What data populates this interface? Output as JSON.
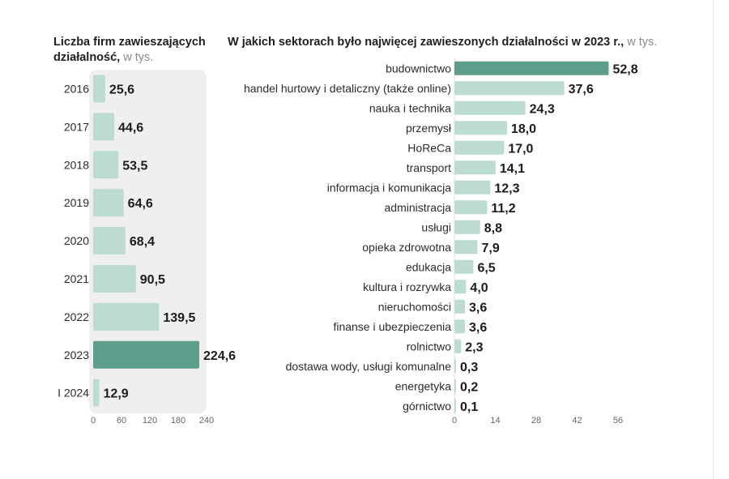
{
  "colors": {
    "bar": "#bcdcd3",
    "highlight": "#5c9e8b",
    "panel": "#efefef"
  },
  "chart_data": [
    {
      "type": "bar",
      "orientation": "horizontal",
      "title": "Liczba firm zawieszających działalność,",
      "title_line1": "Liczba firm zawieszających",
      "title_line2": "działalność,",
      "unit": "w tys.",
      "categories": [
        "2016",
        "2017",
        "2018",
        "2019",
        "2020",
        "2021",
        "2022",
        "2023",
        "I 2024"
      ],
      "values": [
        25.6,
        44.6,
        53.5,
        64.6,
        68.4,
        90.5,
        139.5,
        224.6,
        12.9
      ],
      "value_labels": [
        "25,6",
        "44,6",
        "53,5",
        "64,6",
        "68,4",
        "90,5",
        "139,5",
        "224,6",
        "12,9"
      ],
      "highlight": "2023",
      "xlim": [
        0,
        240
      ],
      "xticks": [
        0,
        60,
        120,
        180,
        240
      ]
    },
    {
      "type": "bar",
      "orientation": "horizontal",
      "title": "W jakich sektorach było najwięcej zawieszonych działalności w 2023 r.,",
      "unit": "w tys.",
      "categories": [
        "budownictwo",
        "handel hurtowy i detaliczny (także online)",
        "nauka i technika",
        "przemysł",
        "HoReCa",
        "transport",
        "informacja i komunikacja",
        "administracja",
        "usługi",
        "opieka zdrowotna",
        "edukacja",
        "kultura i rozrywka",
        "nieruchomości",
        "finanse i ubezpieczenia",
        "rolnictwo",
        "dostawa wody, usługi komunalne",
        "energetyka",
        "górnictwo"
      ],
      "values": [
        52.8,
        37.6,
        24.3,
        18.0,
        17.0,
        14.1,
        12.3,
        11.2,
        8.8,
        7.9,
        6.5,
        4.0,
        3.6,
        3.6,
        2.3,
        0.3,
        0.2,
        0.1
      ],
      "value_labels": [
        "52,8",
        "37,6",
        "24,3",
        "18,0",
        "17,0",
        "14,1",
        "12,3",
        "11,2",
        "8,8",
        "7,9",
        "6,5",
        "4,0",
        "3,6",
        "3,6",
        "2,3",
        "0,3",
        "0,2",
        "0,1"
      ],
      "highlight": "budownictwo",
      "xlim": [
        0,
        56
      ],
      "xticks": [
        0,
        14,
        28,
        42,
        56
      ]
    }
  ]
}
